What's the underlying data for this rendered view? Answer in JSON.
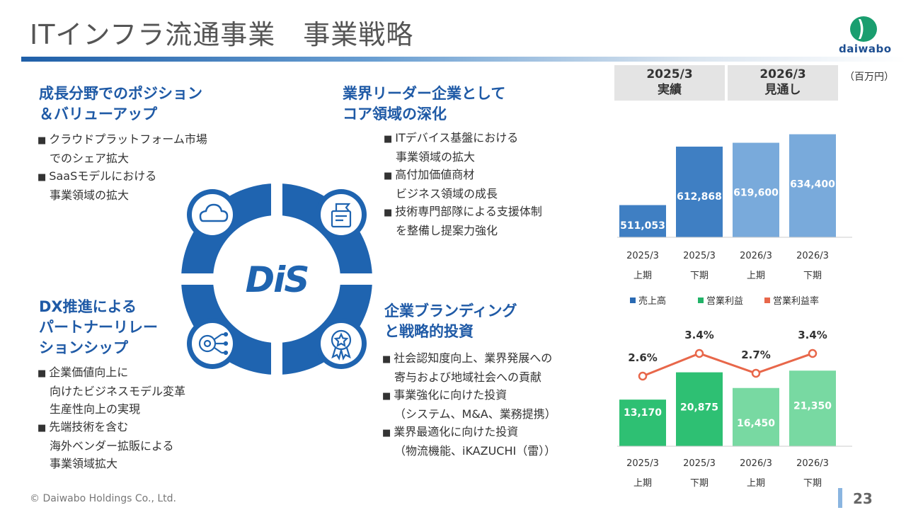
{
  "title": "ITインフラ流通事業　事業戦略",
  "logo": {
    "text": "daiwabo",
    "color": "#1d4e91",
    "mark_color": "#1a9e6f"
  },
  "sections": {
    "tl": {
      "title_lines": [
        "成長分野でのポジション",
        "＆バリューアップ"
      ],
      "bullets": [
        [
          "クラウドプラットフォーム市場",
          "でのシェア拡大"
        ],
        [
          "SaaSモデルにおける",
          "事業領域の拡大"
        ]
      ]
    },
    "tr": {
      "title_lines": [
        "業界リーダー企業として",
        "コア領域の深化"
      ],
      "bullets": [
        [
          "ITデバイス基盤における",
          "事業領域の拡大"
        ],
        [
          "高付加価値商材",
          "ビジネス領域の成長"
        ],
        [
          "技術専門部隊による支援体制",
          "を整備し提案力強化"
        ]
      ]
    },
    "bl": {
      "title_lines": [
        "DX推進による",
        "パートナーリレー",
        "ションシップ"
      ],
      "bullets": [
        [
          "企業価値向上に",
          "向けたビジネスモデル変革",
          "生産性向上の実現"
        ],
        [
          "先端技術を含む",
          "海外ベンダー拡販による",
          "事業領域拡大"
        ]
      ]
    },
    "br": {
      "title_lines": [
        "企業ブランディング",
        "と戦略的投資"
      ],
      "bullets": [
        [
          "社会認知度向上、業界発展への",
          "寄与および地域社会への貢献"
        ],
        [
          "事業強化に向けた投資",
          "（システム、M&A、業務提携）"
        ],
        [
          "業界最適化に向けた投資",
          "（物流機能、iKAZUCHI（雷））"
        ]
      ]
    }
  },
  "center_logo": "DiS",
  "icons": [
    "cloud-icon",
    "product-box-icon",
    "ai-gear-icon",
    "award-badge-icon"
  ],
  "chart_header": [
    {
      "year": "2025/3",
      "label": "実績"
    },
    {
      "year": "2026/3",
      "label": "見通し"
    }
  ],
  "unit_label": "（百万円）",
  "chart_data": [
    {
      "type": "bar",
      "categories": [
        [
          "2025/3",
          "上期"
        ],
        [
          "2025/3",
          "下期"
        ],
        [
          "2026/3",
          "上期"
        ],
        [
          "2026/3",
          "下期"
        ]
      ],
      "series": [
        {
          "name": "売上高",
          "values": [
            511053,
            612868,
            619600,
            634400
          ],
          "value_labels": [
            "511,053",
            "612,868",
            "619,600",
            "634,400"
          ]
        }
      ],
      "colors": [
        "#3f7fc3",
        "#3f7fc3",
        "#79aadb",
        "#79aadb"
      ]
    },
    {
      "type": "bar",
      "categories": [
        [
          "2025/3",
          "上期"
        ],
        [
          "2025/3",
          "下期"
        ],
        [
          "2026/3",
          "上期"
        ],
        [
          "2026/3",
          "下期"
        ]
      ],
      "series": [
        {
          "name": "営業利益",
          "values": [
            13170,
            20875,
            16450,
            21350
          ],
          "value_labels": [
            "13,170",
            "20,875",
            "16,450",
            "21,350"
          ]
        },
        {
          "name": "営業利益率",
          "type": "line",
          "values": [
            2.6,
            3.4,
            2.7,
            3.4
          ],
          "value_labels": [
            "2.6%",
            "3.4%",
            "2.7%",
            "3.4%"
          ]
        }
      ],
      "colors": [
        "#2ec073",
        "#2ec073",
        "#78d9a2",
        "#78d9a2"
      ],
      "line_color": "#e8674a"
    }
  ],
  "legend": [
    {
      "label": "売上高",
      "color": "#2a6ab3"
    },
    {
      "label": "営業利益",
      "color": "#22b368"
    },
    {
      "label": "営業利益率",
      "color": "#e8674a"
    }
  ],
  "copyright": "© Daiwabo Holdings Co., Ltd.",
  "page_number": "23"
}
